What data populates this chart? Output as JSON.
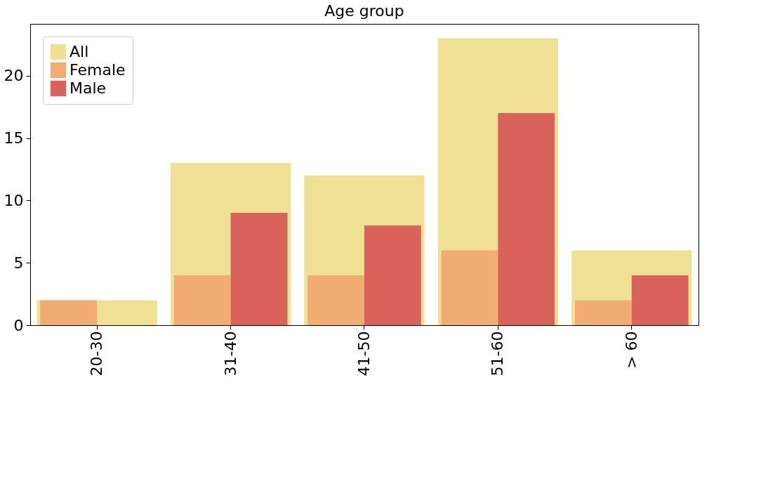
{
  "chart_data": {
    "type": "bar",
    "title": "Age group",
    "categories": [
      "20-30",
      "31-40",
      "41-50",
      "51-60",
      "> 60"
    ],
    "series": [
      {
        "name": "All",
        "color": "#f0e094",
        "values": [
          2,
          13,
          12,
          23,
          6
        ]
      },
      {
        "name": "Female",
        "color": "#f0ac72",
        "values": [
          2,
          4,
          4,
          6,
          2
        ]
      },
      {
        "name": "Male",
        "color": "#d9635a",
        "values": [
          0,
          9,
          8,
          17,
          4
        ]
      }
    ],
    "ylim": [
      0,
      24.15
    ],
    "yticks": [
      0,
      5,
      10,
      15,
      20
    ],
    "grid": false,
    "legend": "top left"
  }
}
